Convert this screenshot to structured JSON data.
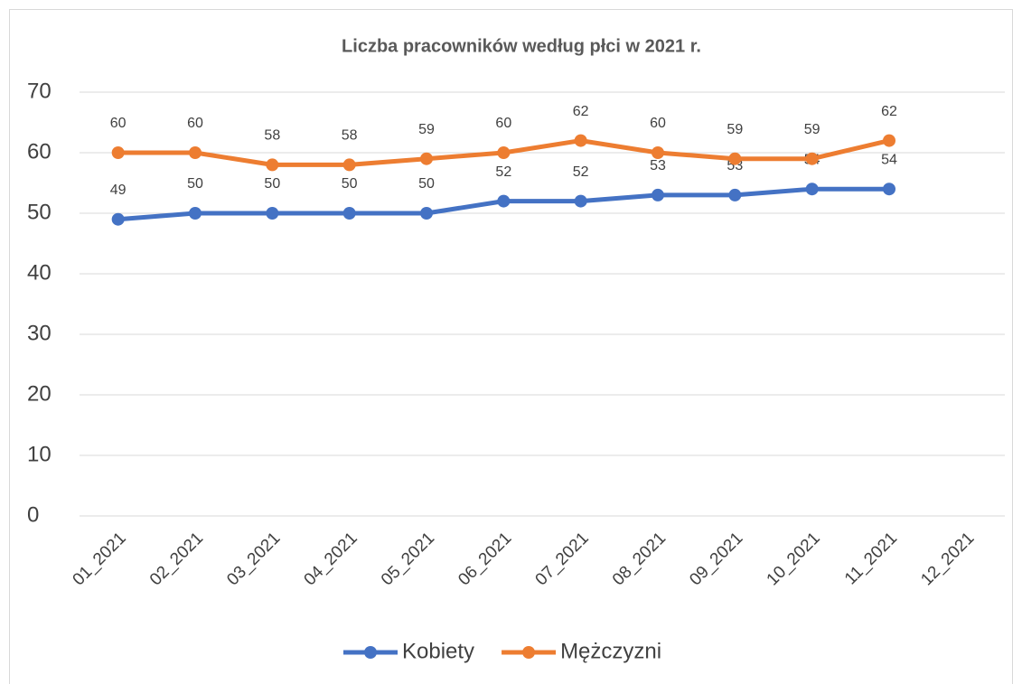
{
  "chart_data": {
    "type": "line",
    "title": "Liczba pracowników według płci w 2021 r.",
    "categories": [
      "01_2021",
      "02_2021",
      "03_2021",
      "04_2021",
      "05_2021",
      "06_2021",
      "07_2021",
      "08_2021",
      "09_2021",
      "10_2021",
      "11_2021",
      "12_2021"
    ],
    "series": [
      {
        "name": "Kobiety",
        "color": "#4472c4",
        "values": [
          49,
          50,
          50,
          50,
          50,
          52,
          52,
          53,
          53,
          54,
          54,
          null
        ]
      },
      {
        "name": "Mężczyzni",
        "color": "#ed7d31",
        "values": [
          60,
          60,
          58,
          58,
          59,
          60,
          62,
          60,
          59,
          59,
          62,
          null
        ]
      }
    ],
    "ylim": [
      0,
      70
    ],
    "yticks": [
      0,
      10,
      20,
      30,
      40,
      50,
      60,
      70
    ],
    "grid": true,
    "legend": "bottom"
  }
}
